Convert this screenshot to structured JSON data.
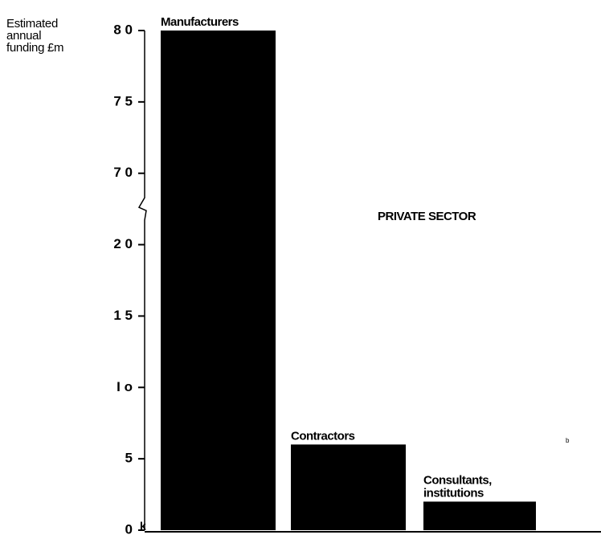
{
  "chart_data": {
    "type": "bar",
    "y_axis_label": "Estimated annual funding £m",
    "annotation": "PRIVATE SECTOR",
    "categories": [
      "Manufacturers",
      "Contractors",
      "Consultants, institutions"
    ],
    "values": [
      80,
      6,
      2
    ],
    "color": "#000000",
    "ylim": [
      0,
      80
    ],
    "axis_break": [
      20,
      70
    ],
    "yticks": [
      {
        "value": 0,
        "label": "0"
      },
      {
        "value": 5,
        "label": "5"
      },
      {
        "value": 10,
        "label": "I o"
      },
      {
        "value": 15,
        "label": "1 5"
      },
      {
        "value": 20,
        "label": "2 0"
      },
      {
        "value": 70,
        "label": "7 0"
      },
      {
        "value": 75,
        "label": "7 5"
      },
      {
        "value": 80,
        "label": "8 0"
      }
    ],
    "stray_marks": [
      "k",
      "b"
    ],
    "grid": false
  }
}
